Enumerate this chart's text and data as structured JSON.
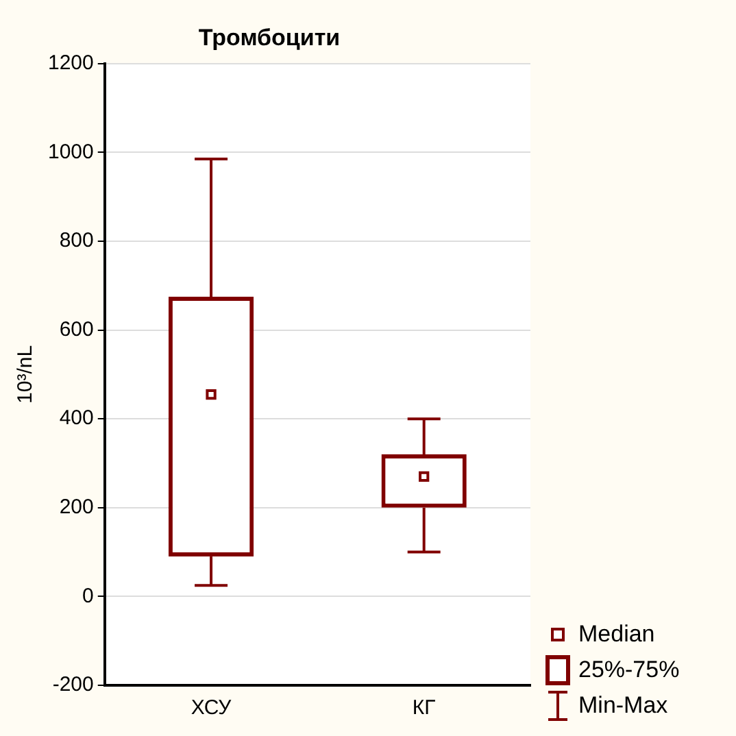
{
  "chart_data": {
    "type": "box",
    "title": "Тромбоцити",
    "ylabel": "10³/nL",
    "categories": [
      "ХСУ",
      "КГ"
    ],
    "color": "#800000",
    "boxes": [
      {
        "low": 25,
        "q1": 90,
        "median": 455,
        "q3": 675,
        "high": 985
      },
      {
        "low": 100,
        "q1": 200,
        "median": 270,
        "q3": 320,
        "high": 400
      }
    ],
    "ylim": [
      -200,
      1200
    ],
    "yticks": [
      -200,
      0,
      200,
      400,
      600,
      800,
      1000,
      1200
    ],
    "grid": "y",
    "annotations": [
      "Median",
      "25%-75%",
      "Min-Max"
    ]
  }
}
